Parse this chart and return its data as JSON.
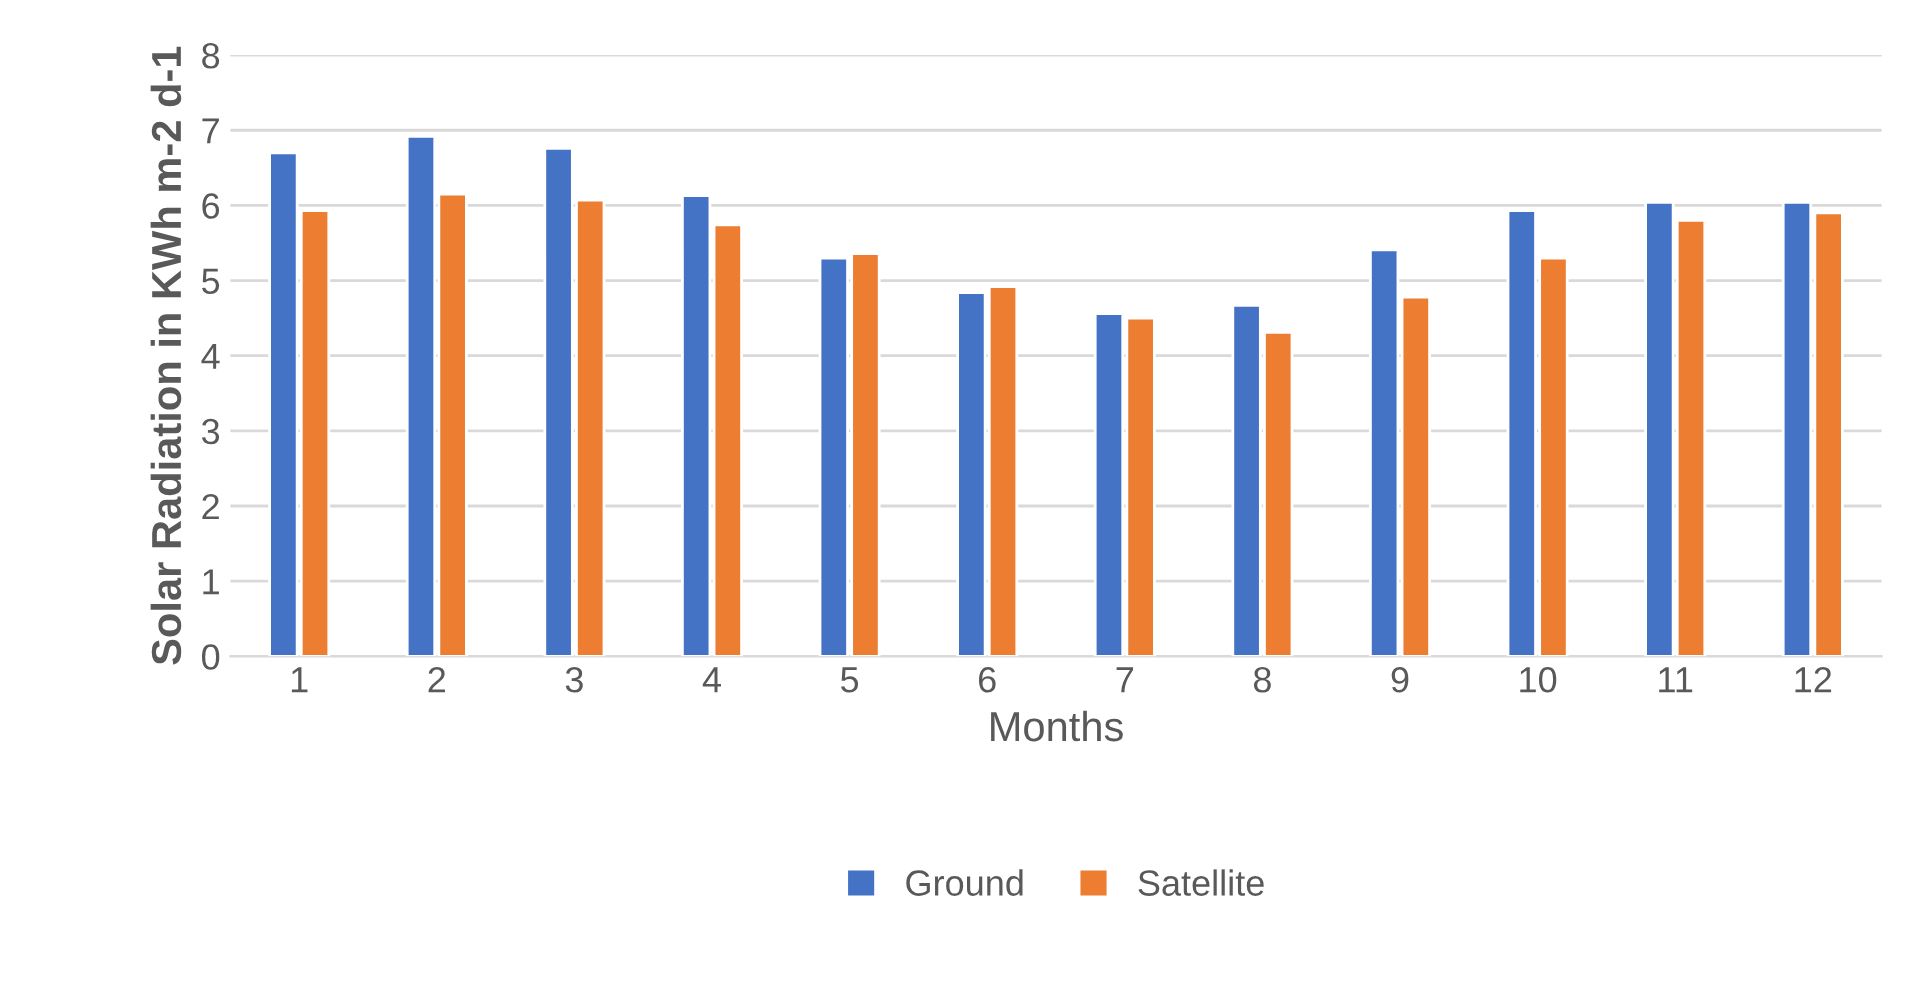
{
  "chart_data": {
    "type": "bar",
    "xlabel": "Months",
    "ylabel": "Solar Radiation in KWh m-2 d-1",
    "categories": [
      "1",
      "2",
      "3",
      "4",
      "5",
      "6",
      "7",
      "8",
      "9",
      "10",
      "11",
      "12"
    ],
    "series": [
      {
        "name": "Ground",
        "color": "#4472c4",
        "values": [
          6.7,
          6.92,
          6.76,
          6.13,
          5.3,
          4.84,
          4.56,
          4.67,
          5.41,
          5.93,
          6.04,
          6.04
        ]
      },
      {
        "name": "Satellite",
        "color": "#ed7d31",
        "values": [
          5.93,
          6.15,
          6.07,
          5.74,
          5.36,
          4.92,
          4.5,
          4.31,
          4.78,
          5.3,
          5.8,
          5.9
        ]
      }
    ],
    "ylim": [
      0,
      8
    ],
    "yticks": [
      0,
      1,
      2,
      3,
      4,
      5,
      6,
      7,
      8
    ],
    "grid": "y",
    "legend": "bottom"
  }
}
